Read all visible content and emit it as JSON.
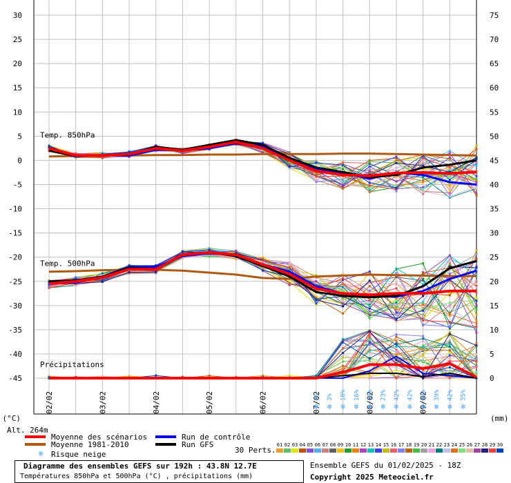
{
  "chart_data": {
    "type": "line",
    "title": "Diagramme des ensembles GEFS sur 192h : 43.8N 12.7E",
    "subtitle": "Températures 850hPa et 500hPa (°C) , précipitations (mm)",
    "ylabel_left": "(°C)",
    "ylabel_right": "(mm)",
    "altitude_label": "Alt. 264m",
    "ylim_left": [
      -45,
      30
    ],
    "ylim_right": [
      0,
      75
    ],
    "left_ticks": [
      "30",
      "25",
      "20",
      "15",
      "10",
      "5",
      "0",
      "-5",
      "-10",
      "-15",
      "-20",
      "-25",
      "-30",
      "-35",
      "-40",
      "-45"
    ],
    "right_ticks": [
      "75",
      "70",
      "65",
      "60",
      "55",
      "50",
      "45",
      "40",
      "35",
      "30",
      "25",
      "20",
      "15",
      "10",
      "5",
      "0"
    ],
    "x_labels": [
      "02/02",
      "03/02",
      "04/02",
      "05/02",
      "06/02",
      "07/02",
      "08/02",
      "09/02"
    ],
    "x_range_hours": [
      0,
      192
    ],
    "section_labels": [
      "Temp. 850hPa",
      "Temp. 500hPa",
      "Précipitations"
    ],
    "t850": {
      "hours": [
        0,
        12,
        24,
        36,
        48,
        60,
        72,
        84,
        96,
        108,
        120,
        132,
        144,
        156,
        168,
        180,
        192
      ],
      "mean": [
        2.5,
        1.0,
        1.0,
        1.3,
        2.5,
        2.0,
        2.8,
        3.8,
        2.5,
        0.0,
        -2.2,
        -3.0,
        -3.2,
        -2.6,
        -2.5,
        -2.7,
        -2.4
      ],
      "clim": [
        0.8,
        0.9,
        1.0,
        1.0,
        1.1,
        1.1,
        1.2,
        1.2,
        1.3,
        1.3,
        1.3,
        1.4,
        1.4,
        1.3,
        1.2,
        1.1,
        1.0
      ],
      "control": [
        2.2,
        0.8,
        1.1,
        1.0,
        2.2,
        2.1,
        2.5,
        3.5,
        2.8,
        0.2,
        -1.8,
        -2.6,
        -3.8,
        -2.5,
        -3.0,
        -4.5,
        -5.0
      ],
      "gfs": [
        2.0,
        0.9,
        1.0,
        1.2,
        2.8,
        2.2,
        3.2,
        4.2,
        3.2,
        0.5,
        -1.5,
        -2.4,
        -3.5,
        -3.0,
        -1.5,
        -0.9,
        0.0
      ]
    },
    "t500": {
      "hours": [
        0,
        12,
        24,
        36,
        48,
        60,
        72,
        84,
        96,
        108,
        120,
        132,
        144,
        156,
        168,
        180,
        192
      ],
      "mean": [
        -25.5,
        -25.0,
        -24.2,
        -22.5,
        -22.5,
        -19.5,
        -19.0,
        -19.5,
        -21.5,
        -23.5,
        -26.5,
        -27.5,
        -27.8,
        -27.5,
        -27.5,
        -27.0,
        -27.0
      ],
      "clim": [
        -23.0,
        -22.9,
        -22.7,
        -22.6,
        -22.6,
        -22.8,
        -23.2,
        -23.6,
        -24.3,
        -24.5,
        -24.0,
        -23.8,
        -23.6,
        -23.7,
        -23.8,
        -23.9,
        -23.9
      ],
      "control": [
        -25.5,
        -25.2,
        -24.0,
        -22.0,
        -22.0,
        -19.8,
        -19.2,
        -19.5,
        -21.5,
        -23.0,
        -26.0,
        -27.5,
        -28.0,
        -28.2,
        -27.0,
        -24.5,
        -22.8
      ],
      "gfs": [
        -25.0,
        -24.8,
        -24.0,
        -22.2,
        -22.4,
        -19.5,
        -19.0,
        -19.8,
        -21.8,
        -24.0,
        -27.2,
        -28.0,
        -28.3,
        -28.0,
        -26.0,
        -22.3,
        -20.8
      ]
    },
    "precip": {
      "hours": [
        0,
        12,
        24,
        36,
        48,
        60,
        72,
        84,
        96,
        108,
        120,
        132,
        144,
        156,
        168,
        180,
        192
      ],
      "mean_mm": [
        0,
        0,
        0,
        0,
        0,
        0,
        0,
        0,
        0,
        0,
        0,
        1.2,
        2.8,
        2.8,
        2.0,
        3.0,
        0.2
      ],
      "control_mm": [
        0,
        0,
        0,
        0,
        0,
        0,
        0,
        0,
        0,
        0,
        0,
        0,
        1.5,
        4.5,
        1.0,
        0.5,
        0
      ],
      "gfs_mm": [
        0,
        0,
        0,
        0,
        0,
        0,
        0,
        0,
        0,
        0,
        0,
        0.5,
        1.0,
        1.0,
        0.3,
        1.0,
        0
      ]
    },
    "snow_risk": {
      "hours": [
        120,
        126,
        132,
        138,
        144,
        150,
        156,
        162,
        168,
        174,
        180,
        186
      ],
      "labels": [
        "3%",
        "3%",
        "16%",
        "16%",
        "16%",
        "23%",
        "42%",
        "42%",
        "39%",
        "39%",
        "42%",
        "35%"
      ]
    },
    "legend": {
      "mean": "Moyenne des scénarios",
      "clim": "Moyenne 1981-2010",
      "control": "Run de contrôle",
      "gfs": "Run GFS",
      "snow": "Risque neige",
      "perts": "30 Perts."
    },
    "member_labels": [
      "01",
      "02",
      "03",
      "04",
      "05",
      "06",
      "07",
      "08",
      "09",
      "10",
      "11",
      "12",
      "13",
      "14",
      "15",
      "16",
      "17",
      "18",
      "19",
      "20",
      "21",
      "22",
      "23",
      "24",
      "25",
      "26",
      "27",
      "28",
      "29",
      "30"
    ],
    "member_colors": [
      "#e8a030",
      "#60c060",
      "#e0e000",
      "#c05000",
      "#8050e0",
      "#50b0f0",
      "#d08080",
      "#606060",
      "#f0c000",
      "#20a020",
      "#f08000",
      "#b040c0",
      "#00c0c0",
      "#4040f0",
      "#c0c000",
      "#f06060",
      "#8080f0",
      "#c06000",
      "#40c040",
      "#a0a0a0",
      "#f0a0e0",
      "#008080",
      "#c0c0f0",
      "#e07020",
      "#80e080",
      "#e0c0a0",
      "#a040a0",
      "#202080",
      "#f04040",
      "#0040c0"
    ],
    "colors": {
      "mean": "#ff0000",
      "clim": "#b05810",
      "control": "#0000ff",
      "gfs": "#000000",
      "grid": "#c0c0c0",
      "snow": "#40a0ff"
    }
  },
  "footer": {
    "title": "Diagramme des ensembles GEFS sur 192h : 43.8N 12.7E",
    "subtitle": "Températures 850hPa et 500hPa (°C) , précipitations (mm)",
    "run_info": "Ensemble GEFS du 01/02/2025 - 18Z",
    "copyright": "Copyright 2025 Meteociel.fr"
  }
}
